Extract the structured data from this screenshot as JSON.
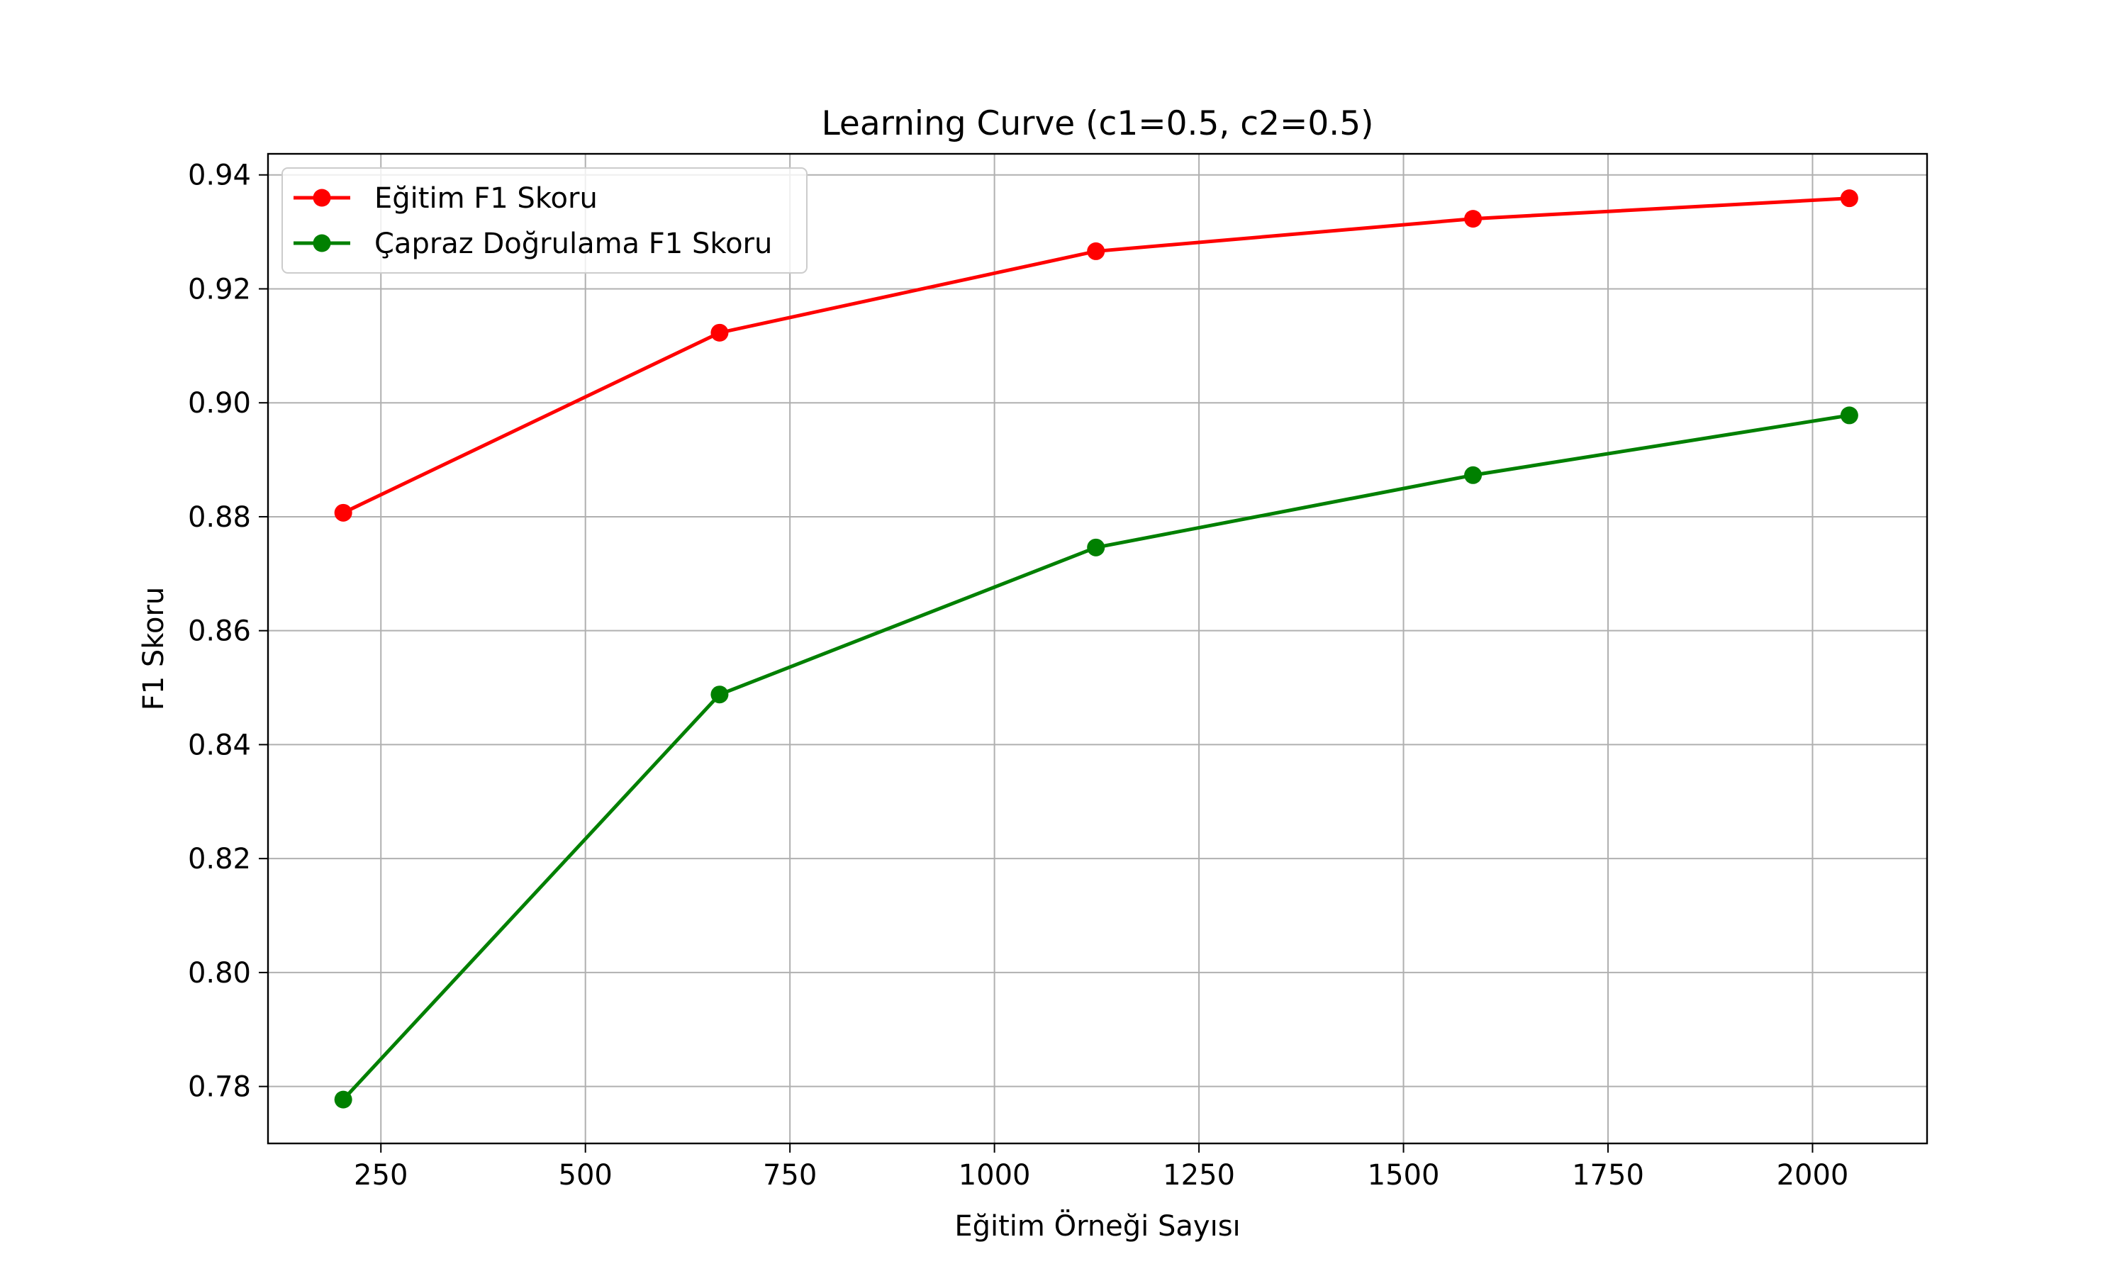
{
  "chart_data": {
    "type": "line",
    "title": "Learning Curve (c1=0.5, c2=0.5)",
    "xlabel": "Eğitim Örneği Sayısı",
    "ylabel": "F1 Skoru",
    "xlim": [
      112,
      2140
    ],
    "ylim": [
      0.77,
      0.9437
    ],
    "xticks": [
      250,
      500,
      750,
      1000,
      1250,
      1500,
      1750,
      2000
    ],
    "xtick_labels": [
      "250",
      "500",
      "750",
      "1000",
      "1250",
      "1500",
      "1750",
      "2000"
    ],
    "yticks": [
      0.78,
      0.8,
      0.82,
      0.84,
      0.86,
      0.88,
      0.9,
      0.92,
      0.94
    ],
    "ytick_labels": [
      "0.78",
      "0.80",
      "0.82",
      "0.84",
      "0.86",
      "0.88",
      "0.90",
      "0.92",
      "0.94"
    ],
    "grid": true,
    "legend_position": "top-left",
    "x": [
      204,
      664,
      1124,
      1585,
      2045
    ],
    "series": [
      {
        "name": "Eğitim F1 Skoru",
        "color": "#ff0000",
        "values": [
          0.8807,
          0.9123,
          0.9266,
          0.9323,
          0.9359
        ]
      },
      {
        "name": "Çapraz Doğrulama F1 Skoru",
        "color": "#008000",
        "values": [
          0.7777,
          0.8488,
          0.8746,
          0.8873,
          0.8978
        ]
      }
    ]
  }
}
